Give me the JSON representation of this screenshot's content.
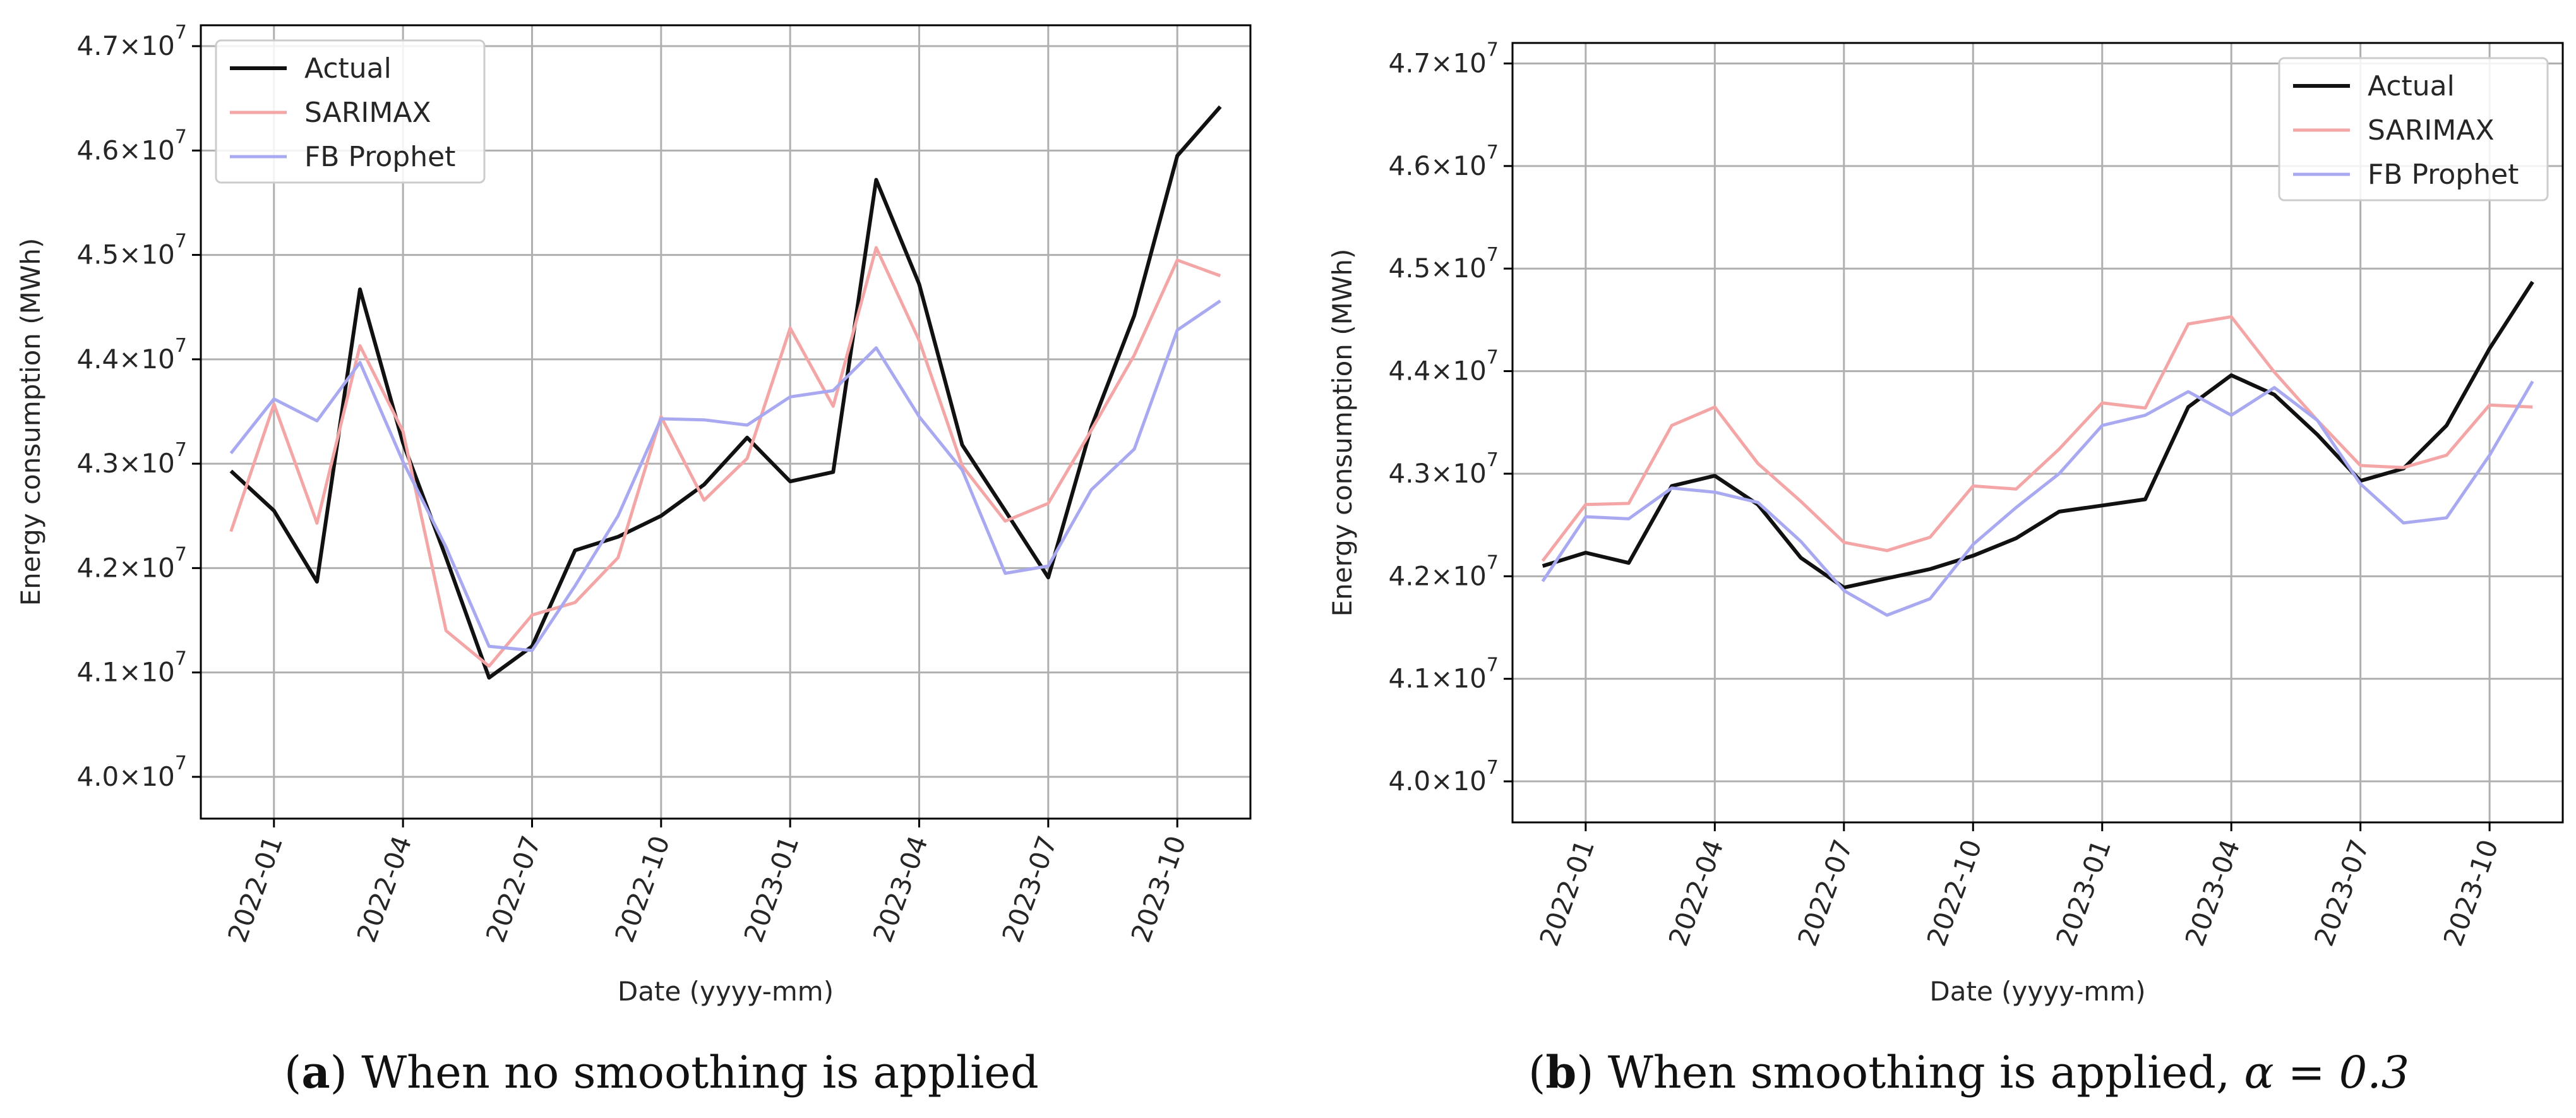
{
  "captions": [
    {
      "letter": "a",
      "text": ") When no smoothing is applied",
      "math": ""
    },
    {
      "letter": "b",
      "text": ") When smoothing is applied, ",
      "math": "α = 0.3"
    }
  ],
  "chart_data": [
    {
      "type": "line",
      "title": "",
      "xlabel": "Date (yyyy-mm)",
      "ylabel": "Energy consumption (MWh)",
      "ylim": [
        39.6,
        47.2
      ],
      "x": [
        "2021-12",
        "2022-01",
        "2022-02",
        "2022-03",
        "2022-04",
        "2022-05",
        "2022-06",
        "2022-07",
        "2022-08",
        "2022-09",
        "2022-10",
        "2022-11",
        "2022-12",
        "2023-01",
        "2023-02",
        "2023-03",
        "2023-04",
        "2023-05",
        "2023-06",
        "2023-07",
        "2023-08",
        "2023-09",
        "2023-10",
        "2023-11"
      ],
      "x_ticks": [
        "2022-01",
        "2022-04",
        "2022-07",
        "2022-10",
        "2023-01",
        "2023-04",
        "2023-07",
        "2023-10"
      ],
      "y_ticks": [
        40.0,
        41.0,
        42.0,
        43.0,
        44.0,
        45.0,
        46.0,
        47.0
      ],
      "y_tick_labels": [
        "4.0×10",
        "4.1×10",
        "4.2×10",
        "4.3×10",
        "4.4×10",
        "4.5×10",
        "4.6×10",
        "4.7×10"
      ],
      "y_tick_exponent": "7",
      "grid": true,
      "legend": "top-left",
      "series": [
        {
          "name": "Actual",
          "color": "#111111",
          "values": [
            42.93,
            42.55,
            41.87,
            44.67,
            43.2,
            42.1,
            40.95,
            41.25,
            42.17,
            42.3,
            42.5,
            42.8,
            43.25,
            42.83,
            42.92,
            45.72,
            44.72,
            43.18,
            42.55,
            41.91,
            43.35,
            44.42,
            45.95,
            46.42
          ]
        },
        {
          "name": "SARIMAX",
          "color": "#f4a6a6",
          "values": [
            42.35,
            43.57,
            42.43,
            44.13,
            43.31,
            41.4,
            41.06,
            41.55,
            41.67,
            42.1,
            43.45,
            42.65,
            43.05,
            44.3,
            43.55,
            45.07,
            44.18,
            42.98,
            42.45,
            42.62,
            43.32,
            44.04,
            44.95,
            44.8
          ]
        },
        {
          "name": "FB Prophet",
          "color": "#a9a9f2",
          "values": [
            43.1,
            43.62,
            43.41,
            43.97,
            43.02,
            42.2,
            41.25,
            41.21,
            41.83,
            42.5,
            43.43,
            43.42,
            43.37,
            43.64,
            43.7,
            44.11,
            43.45,
            42.94,
            41.95,
            42.02,
            42.75,
            43.14,
            44.28,
            44.56
          ]
        }
      ]
    },
    {
      "type": "line",
      "title": "",
      "xlabel": "Date (yyyy-mm)",
      "ylabel": "Energy consumption (MWh)",
      "ylim": [
        39.6,
        47.2
      ],
      "x": [
        "2021-12",
        "2022-01",
        "2022-02",
        "2022-03",
        "2022-04",
        "2022-05",
        "2022-06",
        "2022-07",
        "2022-08",
        "2022-09",
        "2022-10",
        "2022-11",
        "2022-12",
        "2023-01",
        "2023-02",
        "2023-03",
        "2023-04",
        "2023-05",
        "2023-06",
        "2023-07",
        "2023-08",
        "2023-09",
        "2023-10",
        "2023-11"
      ],
      "x_ticks": [
        "2022-01",
        "2022-04",
        "2022-07",
        "2022-10",
        "2023-01",
        "2023-04",
        "2023-07",
        "2023-10"
      ],
      "y_ticks": [
        40.0,
        41.0,
        42.0,
        43.0,
        44.0,
        45.0,
        46.0,
        47.0
      ],
      "y_tick_labels": [
        "4.0×10",
        "4.1×10",
        "4.2×10",
        "4.3×10",
        "4.4×10",
        "4.5×10",
        "4.6×10",
        "4.7×10"
      ],
      "y_tick_exponent": "7",
      "grid": true,
      "legend": "top-right",
      "series": [
        {
          "name": "Actual",
          "color": "#111111",
          "values": [
            42.1,
            42.23,
            42.13,
            42.88,
            42.98,
            42.7,
            42.18,
            41.89,
            41.98,
            42.07,
            42.2,
            42.37,
            42.63,
            42.69,
            42.75,
            43.65,
            43.96,
            43.77,
            43.38,
            42.93,
            43.05,
            43.47,
            44.22,
            44.87
          ]
        },
        {
          "name": "SARIMAX",
          "color": "#f4a6a6",
          "values": [
            42.15,
            42.7,
            42.71,
            43.47,
            43.65,
            43.1,
            42.73,
            42.33,
            42.25,
            42.38,
            42.88,
            42.85,
            43.24,
            43.69,
            43.64,
            44.46,
            44.53,
            43.99,
            43.52,
            43.08,
            43.06,
            43.18,
            43.67,
            43.65
          ]
        },
        {
          "name": "FB Prophet",
          "color": "#a9a9f2",
          "values": [
            41.95,
            42.58,
            42.56,
            42.86,
            42.82,
            42.72,
            42.34,
            41.86,
            41.62,
            41.78,
            42.31,
            42.67,
            43.0,
            43.47,
            43.57,
            43.8,
            43.57,
            43.84,
            43.52,
            42.9,
            42.52,
            42.57,
            43.18,
            43.9
          ]
        }
      ]
    }
  ]
}
